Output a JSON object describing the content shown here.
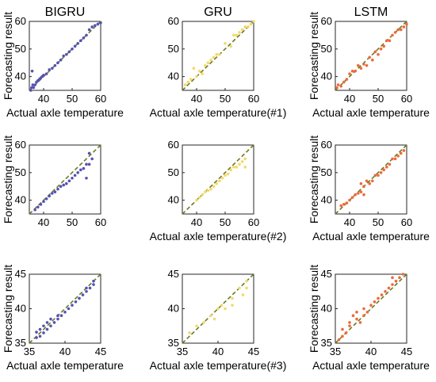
{
  "figure": {
    "column_titles": [
      "BIGRU",
      "GRU",
      "LSTM"
    ],
    "series_colors": {
      "BIGRU": "#5552b3",
      "GRU": "#f2d96b",
      "LSTM": "#ec6a3a"
    },
    "reference_line_color": "#6a7a22"
  },
  "chart_data": [
    {
      "type": "scatter",
      "title": "BIGRU",
      "xlabel": "Actual axle temperature",
      "ylabel": "Forecasting result",
      "xlim": [
        35,
        60
      ],
      "ylim": [
        35,
        60
      ],
      "xticks": [
        40,
        50,
        60
      ],
      "yticks": [
        40,
        50,
        60
      ],
      "reference_line": "y=x",
      "points": [
        [
          35.5,
          35
        ],
        [
          35.8,
          36
        ],
        [
          36,
          42
        ],
        [
          36.2,
          37
        ],
        [
          36.5,
          36
        ],
        [
          37,
          37
        ],
        [
          37.5,
          38
        ],
        [
          38,
          38.5
        ],
        [
          38.5,
          39
        ],
        [
          39,
          39.5
        ],
        [
          39.5,
          40
        ],
        [
          40,
          40.5
        ],
        [
          41,
          41
        ],
        [
          42,
          42.5
        ],
        [
          43,
          43
        ],
        [
          44,
          44
        ],
        [
          45,
          45
        ],
        [
          46,
          46
        ],
        [
          47,
          47.5
        ],
        [
          48,
          48
        ],
        [
          49,
          49
        ],
        [
          50,
          50
        ],
        [
          51,
          51
        ],
        [
          52,
          52
        ],
        [
          53,
          53
        ],
        [
          54,
          54
        ],
        [
          55,
          55
        ],
        [
          56,
          57
        ],
        [
          57,
          58
        ],
        [
          58,
          58.5
        ],
        [
          59,
          59
        ],
        [
          60,
          59.5
        ]
      ]
    },
    {
      "type": "scatter",
      "title": "GRU",
      "xlabel": "Actual axle temperature(#1)",
      "ylabel": "",
      "xlim": [
        35,
        60
      ],
      "ylim": [
        35,
        60
      ],
      "xticks": [
        40,
        50,
        60
      ],
      "yticks": [
        40,
        50,
        60
      ],
      "reference_line": "y=x",
      "points": [
        [
          36,
          37
        ],
        [
          37,
          38
        ],
        [
          38,
          39
        ],
        [
          39,
          43
        ],
        [
          40,
          40
        ],
        [
          41,
          42
        ],
        [
          42,
          41
        ],
        [
          43,
          44
        ],
        [
          44,
          45
        ],
        [
          45,
          46
        ],
        [
          46,
          47
        ],
        [
          47,
          48
        ],
        [
          48,
          48
        ],
        [
          50,
          52
        ],
        [
          52,
          51
        ],
        [
          53,
          55
        ],
        [
          54,
          55
        ],
        [
          55,
          56
        ],
        [
          56,
          57
        ],
        [
          57,
          58
        ],
        [
          58,
          58
        ],
        [
          59,
          59
        ],
        [
          60,
          60
        ]
      ]
    },
    {
      "type": "scatter",
      "title": "LSTM",
      "xlabel": "Actual axle temperature",
      "ylabel": "Forecasting result",
      "xlim": [
        35,
        60
      ],
      "ylim": [
        35,
        60
      ],
      "xticks": [
        40,
        50,
        60
      ],
      "yticks": [
        40,
        50,
        60
      ],
      "reference_line": "y=x",
      "points": [
        [
          35.5,
          36
        ],
        [
          36,
          37
        ],
        [
          37,
          36.5
        ],
        [
          38,
          38
        ],
        [
          39,
          39
        ],
        [
          40,
          41
        ],
        [
          41,
          42
        ],
        [
          42,
          42
        ],
        [
          43,
          44
        ],
        [
          44,
          43
        ],
        [
          45,
          44.5
        ],
        [
          46,
          44
        ],
        [
          47,
          47
        ],
        [
          48,
          46
        ],
        [
          49,
          49
        ],
        [
          50,
          48
        ],
        [
          51,
          50
        ],
        [
          52,
          51
        ],
        [
          53,
          53
        ],
        [
          54,
          53
        ],
        [
          55,
          55
        ],
        [
          56,
          56
        ],
        [
          57,
          57
        ],
        [
          58,
          57
        ],
        [
          59,
          58
        ],
        [
          60,
          59
        ]
      ]
    },
    {
      "type": "scatter",
      "title": "",
      "xlabel": "",
      "ylabel": "Forecasting result",
      "xlim": [
        35,
        60
      ],
      "ylim": [
        35,
        60
      ],
      "xticks": [
        40,
        50,
        60
      ],
      "yticks": [
        40,
        50,
        60
      ],
      "reference_line": "y=x",
      "points": [
        [
          37,
          36.5
        ],
        [
          38,
          37.5
        ],
        [
          39,
          38.5
        ],
        [
          40,
          39.5
        ],
        [
          41,
          40.5
        ],
        [
          42,
          41.5
        ],
        [
          43,
          42.5
        ],
        [
          44,
          43
        ],
        [
          45,
          44
        ],
        [
          46,
          45
        ],
        [
          47,
          45.5
        ],
        [
          48,
          46
        ],
        [
          49,
          47
        ],
        [
          50,
          48
        ],
        [
          51,
          49
        ],
        [
          52,
          50
        ],
        [
          53,
          51
        ],
        [
          54,
          51.5
        ],
        [
          55,
          53
        ],
        [
          55,
          48
        ],
        [
          56,
          57
        ],
        [
          56,
          53
        ],
        [
          57,
          55
        ]
      ]
    },
    {
      "type": "scatter",
      "title": "",
      "xlabel": "Actual axle temperature(#2)",
      "ylabel": "",
      "xlim": [
        35,
        60
      ],
      "ylim": [
        35,
        60
      ],
      "xticks": [
        40,
        50,
        60
      ],
      "yticks": [
        40,
        50,
        60
      ],
      "reference_line": "y=x",
      "points": [
        [
          40,
          40
        ],
        [
          41,
          41
        ],
        [
          42,
          42
        ],
        [
          43,
          43
        ],
        [
          44,
          43.5
        ],
        [
          45,
          44
        ],
        [
          46,
          45
        ],
        [
          47,
          46
        ],
        [
          48,
          47
        ],
        [
          49,
          48
        ],
        [
          50,
          49
        ],
        [
          51,
          49.5
        ],
        [
          52,
          51
        ],
        [
          53,
          52
        ],
        [
          54,
          52
        ],
        [
          55,
          53
        ],
        [
          56,
          54
        ],
        [
          57,
          55
        ],
        [
          57,
          52
        ]
      ]
    },
    {
      "type": "scatter",
      "title": "",
      "xlabel": "Actual axle temperature",
      "ylabel": "Forecasting result",
      "xlim": [
        35,
        60
      ],
      "ylim": [
        35,
        60
      ],
      "xticks": [
        40,
        50,
        60
      ],
      "yticks": [
        40,
        50,
        60
      ],
      "reference_line": "y=x",
      "points": [
        [
          37,
          38
        ],
        [
          38,
          38.5
        ],
        [
          39,
          39
        ],
        [
          40,
          40
        ],
        [
          41,
          41
        ],
        [
          42,
          42
        ],
        [
          43,
          42.5
        ],
        [
          44,
          43
        ],
        [
          44,
          46
        ],
        [
          45,
          45
        ],
        [
          45,
          42
        ],
        [
          46,
          47
        ],
        [
          47,
          46
        ],
        [
          48,
          47
        ],
        [
          49,
          49
        ],
        [
          50,
          49
        ],
        [
          51,
          50
        ],
        [
          52,
          51
        ],
        [
          53,
          52
        ],
        [
          54,
          53
        ],
        [
          55,
          55
        ],
        [
          56,
          55
        ],
        [
          57,
          56
        ],
        [
          58,
          57
        ],
        [
          59,
          58
        ]
      ]
    },
    {
      "type": "scatter",
      "title": "",
      "xlabel": "Actual axle temperature",
      "ylabel": "Forecasting result",
      "xlim": [
        35,
        45
      ],
      "ylim": [
        35,
        45
      ],
      "xticks": [
        35,
        40,
        45
      ],
      "yticks": [
        35,
        40,
        45
      ],
      "reference_line": "y=x",
      "points": [
        [
          36,
          35.8
        ],
        [
          36,
          36.6
        ],
        [
          36.5,
          37
        ],
        [
          36.5,
          36
        ],
        [
          37,
          37.5
        ],
        [
          37,
          36.5
        ],
        [
          37.5,
          38
        ],
        [
          37.5,
          37
        ],
        [
          38,
          38.5
        ],
        [
          38,
          37.5
        ],
        [
          38.5,
          38
        ],
        [
          39,
          38.5
        ],
        [
          39,
          39
        ],
        [
          39.5,
          39
        ],
        [
          40,
          39.5
        ],
        [
          40.5,
          40
        ],
        [
          41,
          40.5
        ],
        [
          41.5,
          41
        ],
        [
          42,
          41.5
        ],
        [
          42.5,
          42
        ],
        [
          43,
          42.5
        ],
        [
          43,
          43
        ],
        [
          43.5,
          43
        ],
        [
          44,
          43.5
        ],
        [
          44,
          44
        ]
      ]
    },
    {
      "type": "scatter",
      "title": "",
      "xlabel": "Actual axle temperature(#3)",
      "ylabel": "",
      "xlim": [
        35,
        45
      ],
      "ylim": [
        35,
        45
      ],
      "xticks": [
        35,
        40,
        45
      ],
      "yticks": [
        35,
        40,
        45
      ],
      "reference_line": "y=x",
      "points": [
        [
          36,
          36.5
        ],
        [
          37,
          37.5
        ],
        [
          38,
          38
        ],
        [
          39,
          39
        ],
        [
          39.5,
          38.5
        ],
        [
          40,
          40
        ],
        [
          40.5,
          40.5
        ],
        [
          41,
          40
        ],
        [
          42,
          41.5
        ],
        [
          42,
          40.5
        ],
        [
          43,
          43
        ],
        [
          43.5,
          42
        ],
        [
          44,
          44
        ],
        [
          44,
          43
        ]
      ]
    },
    {
      "type": "scatter",
      "title": "",
      "xlabel": "Actual axle temperature",
      "ylabel": "Forecasting result",
      "xlim": [
        35,
        45
      ],
      "ylim": [
        35,
        45
      ],
      "xticks": [
        35,
        40,
        45
      ],
      "yticks": [
        35,
        40,
        45
      ],
      "reference_line": "y=x",
      "points": [
        [
          35.5,
          35.5
        ],
        [
          36,
          36
        ],
        [
          36,
          37
        ],
        [
          36.5,
          36.5
        ],
        [
          37,
          37.5
        ],
        [
          37,
          38
        ],
        [
          37.5,
          39
        ],
        [
          38,
          38.5
        ],
        [
          38,
          39.5
        ],
        [
          38.5,
          38
        ],
        [
          39,
          40
        ],
        [
          39,
          39
        ],
        [
          39.5,
          39.5
        ],
        [
          40,
          40.5
        ],
        [
          40.5,
          41
        ],
        [
          41,
          41.5
        ],
        [
          41.5,
          42
        ],
        [
          42,
          42.5
        ],
        [
          42.5,
          43
        ],
        [
          43,
          43.5
        ],
        [
          43,
          44.5
        ],
        [
          43.5,
          44
        ],
        [
          44,
          44.5
        ],
        [
          44.5,
          45
        ]
      ]
    }
  ]
}
